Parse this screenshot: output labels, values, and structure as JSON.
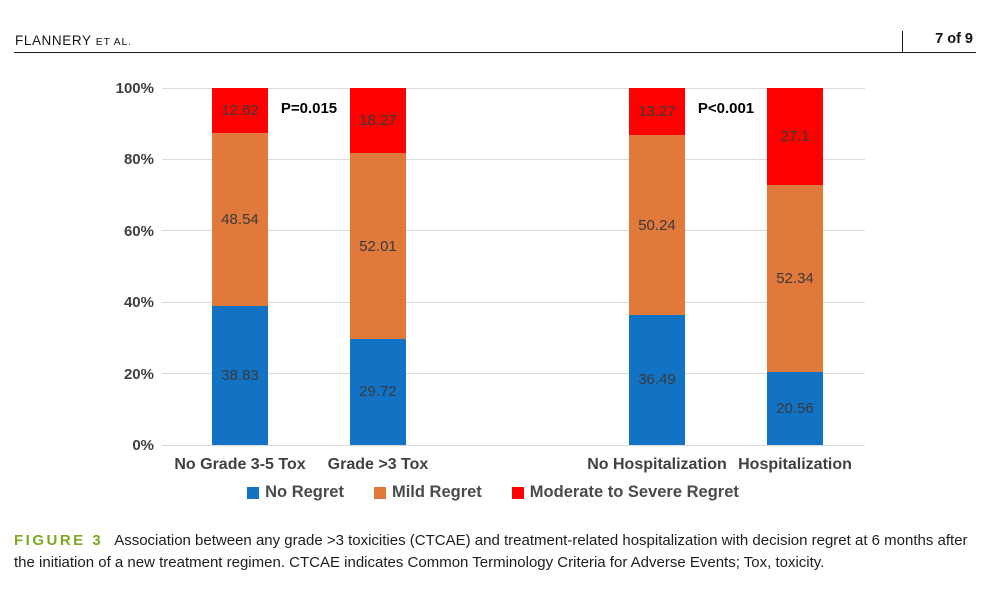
{
  "header": {
    "authors": "FLANNERY",
    "et_al": "ET AL.",
    "page_info": "7 of 9"
  },
  "chart_data": {
    "type": "bar",
    "stacked": true,
    "orientation": "vertical",
    "categories": [
      "No Grade 3-5 Tox",
      "Grade >3 Tox",
      "No Hospitalization",
      "Hospitalization"
    ],
    "series": [
      {
        "name": "No Regret",
        "color": "#1272c3",
        "values": [
          38.83,
          29.72,
          36.49,
          20.56
        ]
      },
      {
        "name": "Mild Regret",
        "color": "#e1793b",
        "values": [
          48.54,
          52.01,
          50.24,
          52.34
        ]
      },
      {
        "name": "Moderate to Severe Regret",
        "color": "#fe0000",
        "values": [
          12.62,
          18.27,
          13.27,
          27.1
        ]
      }
    ],
    "annotations": [
      {
        "text": "P=0.015",
        "between_categories": [
          0,
          1
        ]
      },
      {
        "text": "P<0.001",
        "between_categories": [
          2,
          3
        ]
      }
    ],
    "y_ticks": [
      {
        "value": 0,
        "label": "0%"
      },
      {
        "value": 20,
        "label": "20%"
      },
      {
        "value": 40,
        "label": "40%"
      },
      {
        "value": 60,
        "label": "60%"
      },
      {
        "value": 80,
        "label": "80%"
      },
      {
        "value": 100,
        "label": "100%"
      }
    ],
    "ylim": [
      0,
      100
    ],
    "grid": true,
    "gridline_color": "#dadada",
    "legend_position": "bottom",
    "data_label_color": "#3a3a3a",
    "axis_label_color": "#404040"
  },
  "caption": {
    "label": "FIGURE 3",
    "label_color": "#7ca822",
    "text": "Association between any grade >3 toxicities (CTCAE) and treatment-related hospitalization with decision regret at 6 months after the initiation of a new treatment regimen. CTCAE indicates Common Terminology Criteria for Adverse Events; Tox, toxicity."
  }
}
